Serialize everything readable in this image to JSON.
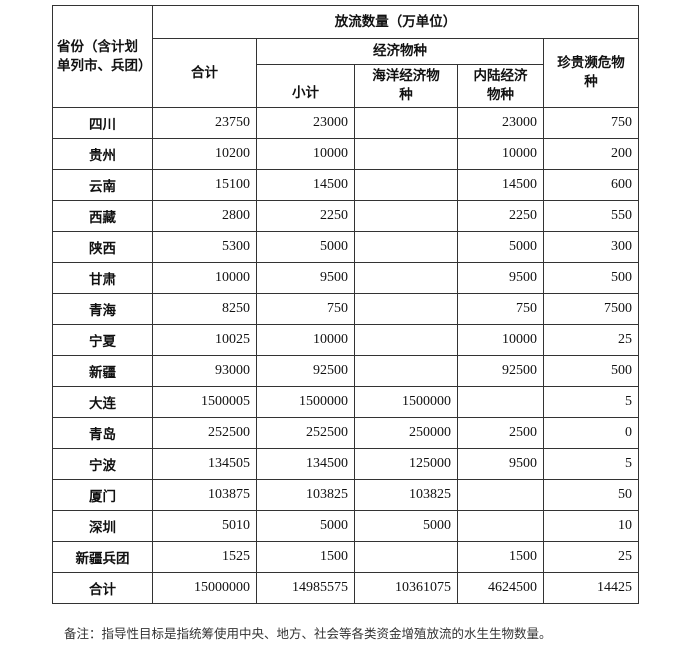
{
  "header": {
    "region": "省份（含计划单列市、兵团）",
    "release": "放流数量（万单位）",
    "total": "合计",
    "economic": "经济物种",
    "subtotal": "小计",
    "marine": "海洋经济物种",
    "inland": "内陆经济物种",
    "rare": "珍贵濒危物种"
  },
  "rows": [
    [
      "四川",
      "23750",
      "23000",
      "",
      "23000",
      "750"
    ],
    [
      "贵州",
      "10200",
      "10000",
      "",
      "10000",
      "200"
    ],
    [
      "云南",
      "15100",
      "14500",
      "",
      "14500",
      "600"
    ],
    [
      "西藏",
      "2800",
      "2250",
      "",
      "2250",
      "550"
    ],
    [
      "陕西",
      "5300",
      "5000",
      "",
      "5000",
      "300"
    ],
    [
      "甘肃",
      "10000",
      "9500",
      "",
      "9500",
      "500"
    ],
    [
      "青海",
      "8250",
      "750",
      "",
      "750",
      "7500"
    ],
    [
      "宁夏",
      "10025",
      "10000",
      "",
      "10000",
      "25"
    ],
    [
      "新疆",
      "93000",
      "92500",
      "",
      "92500",
      "500"
    ],
    [
      "大连",
      "1500005",
      "1500000",
      "1500000",
      "",
      "5"
    ],
    [
      "青岛",
      "252500",
      "252500",
      "250000",
      "2500",
      "0"
    ],
    [
      "宁波",
      "134505",
      "134500",
      "125000",
      "9500",
      "5"
    ],
    [
      "厦门",
      "103875",
      "103825",
      "103825",
      "",
      "50"
    ],
    [
      "深圳",
      "5010",
      "5000",
      "5000",
      "",
      "10"
    ],
    [
      "新疆兵团",
      "1525",
      "1500",
      "",
      "1500",
      "25"
    ],
    [
      "合计",
      "15000000",
      "14985575",
      "10361075",
      "4624500",
      "14425"
    ]
  ],
  "note": "备注：指导性目标是指统筹使用中央、地方、社会等各类资金增殖放流的水生生物数量。"
}
